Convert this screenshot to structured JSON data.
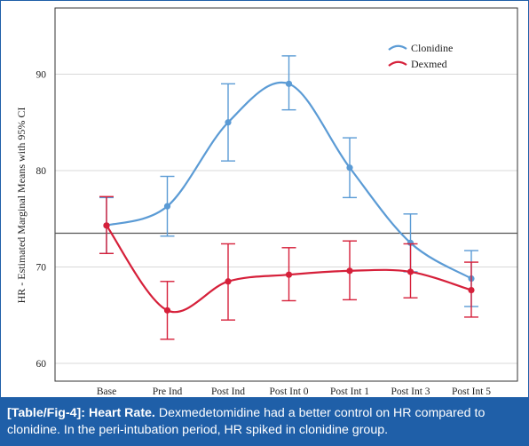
{
  "chart_data": {
    "type": "line",
    "ylabel": "HR - Estimated Marginal Means with 95% CI",
    "xlabel": "",
    "categories": [
      "Base",
      "Pre Ind",
      "Post Ind",
      "Post Int 0",
      "Post Int 1",
      "Post Int 3",
      "Post Int 5"
    ],
    "yticks": [
      60,
      70,
      80,
      90
    ],
    "ylim": [
      58,
      97
    ],
    "reference_line": 73.5,
    "legend_position": "top-right",
    "grid": "horizontal",
    "series": [
      {
        "name": "Clonidine",
        "color": "#5b9bd5",
        "values": [
          74.3,
          76.3,
          85.0,
          89.0,
          80.3,
          72.5,
          68.8
        ],
        "ci_low": [
          71.4,
          73.2,
          81.0,
          86.3,
          77.2,
          69.5,
          65.9
        ],
        "ci_high": [
          77.2,
          79.4,
          89.0,
          91.9,
          83.4,
          75.5,
          71.7
        ]
      },
      {
        "name": "Dexmed",
        "color": "#d6203a",
        "values": [
          74.3,
          65.5,
          68.5,
          69.2,
          69.6,
          69.5,
          67.6
        ],
        "ci_low": [
          71.4,
          62.5,
          64.5,
          66.5,
          66.6,
          66.8,
          64.8
        ],
        "ci_high": [
          77.3,
          68.5,
          72.4,
          72.0,
          72.7,
          72.4,
          70.5
        ]
      }
    ]
  },
  "caption": {
    "label": "[Table/Fig-4]:",
    "title": "Heart Rate.",
    "text": "Dexmedetomidine had a better control on HR compared to clonidine. In the peri-intubation period, HR spiked in clonidine group."
  }
}
